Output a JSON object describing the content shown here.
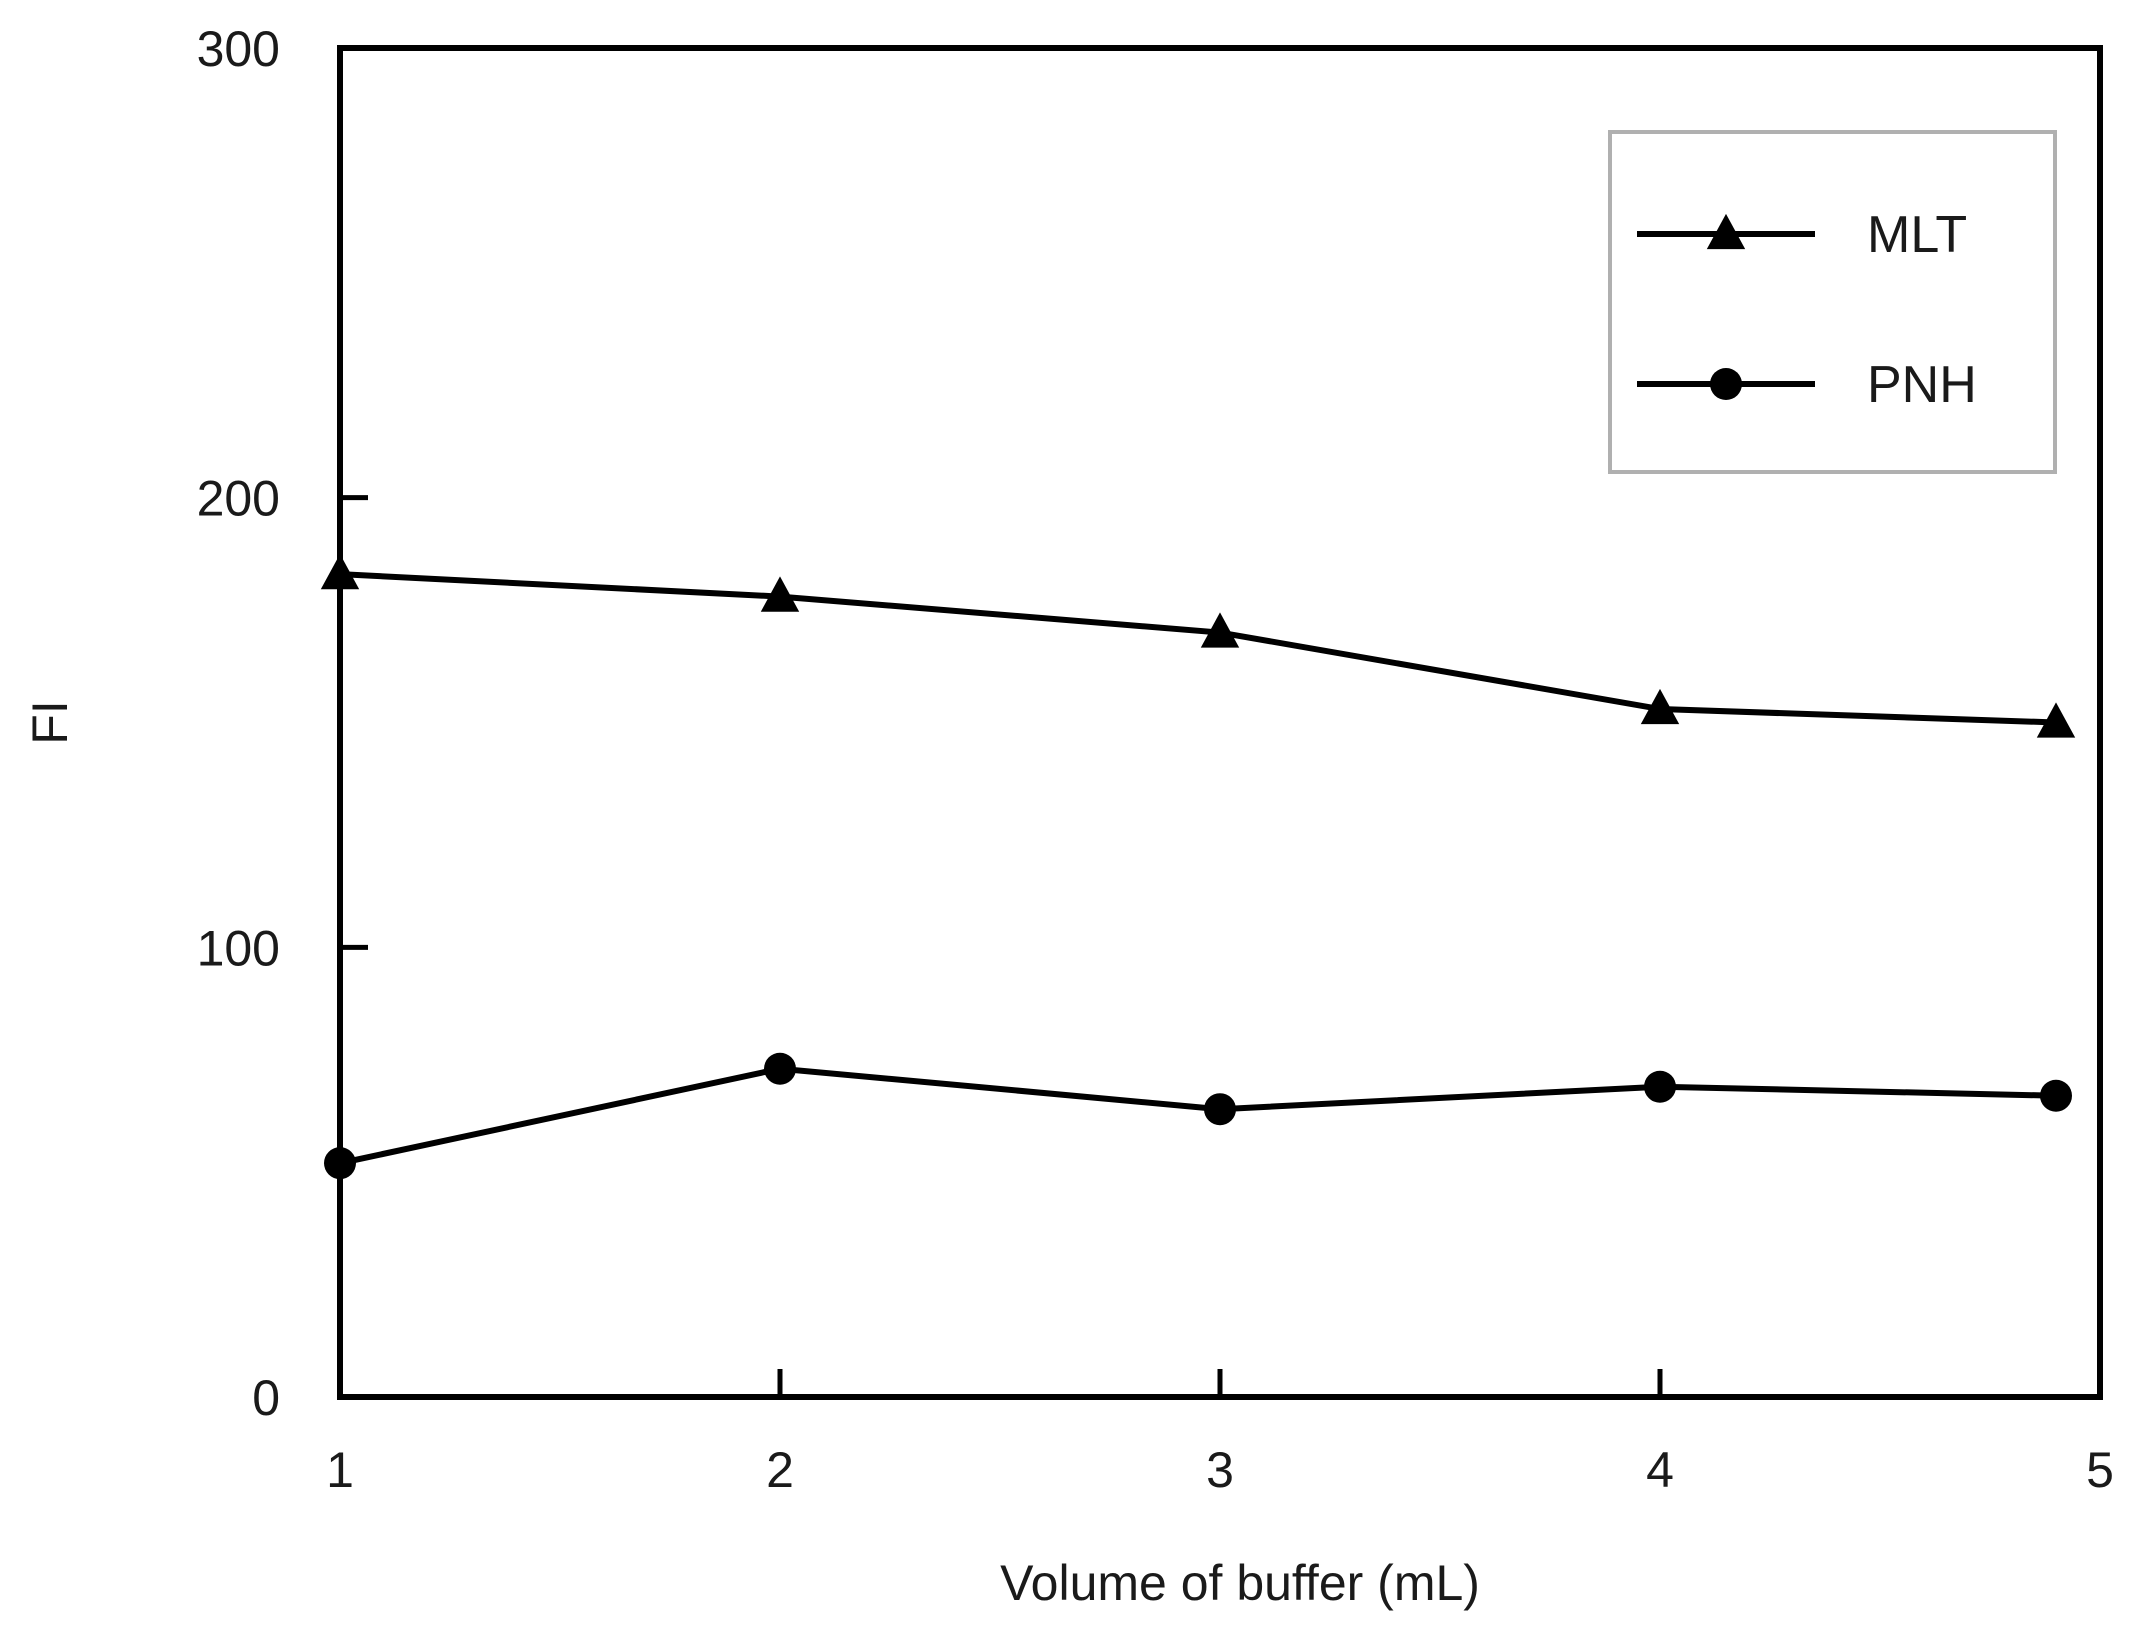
{
  "chart_data": {
    "type": "line",
    "title": "",
    "xlabel": "Volume of buffer (mL)",
    "ylabel": "FI",
    "x": [
      1,
      2,
      3,
      4,
      4.9
    ],
    "xticks": [
      1,
      2,
      3,
      4,
      5
    ],
    "yticks": [
      0,
      100,
      200,
      300
    ],
    "xlim": [
      1,
      5
    ],
    "ylim": [
      0,
      300
    ],
    "grid": false,
    "legend_position": "top-right",
    "series": [
      {
        "name": "MLT",
        "marker": "triangle",
        "values": [
          183,
          178,
          170,
          153,
          150
        ]
      },
      {
        "name": "PNH",
        "marker": "circle",
        "values": [
          52,
          73,
          64,
          69,
          67
        ]
      }
    ],
    "colors": {
      "line": "#000000",
      "axis": "#000000",
      "legend_border": "#b0b0b0"
    }
  }
}
